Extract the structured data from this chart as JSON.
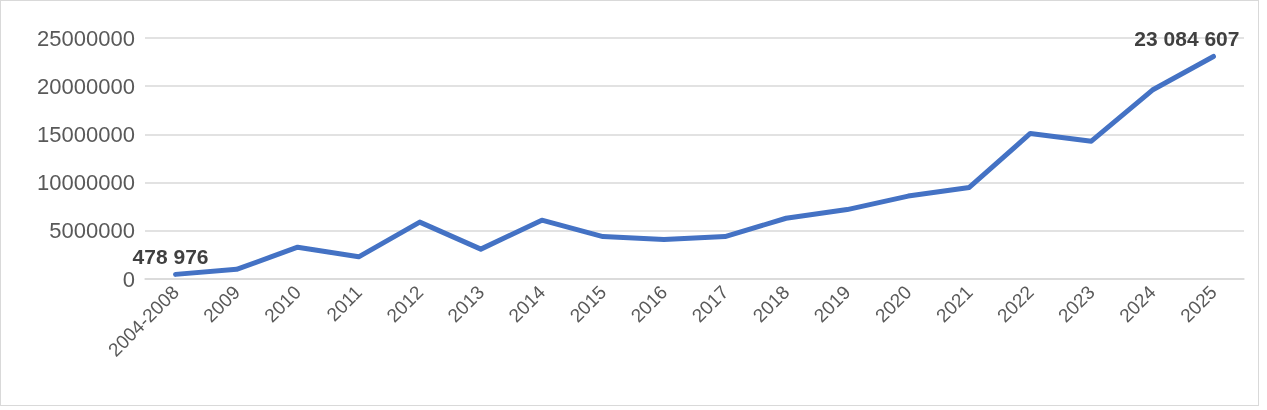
{
  "chart_data": {
    "type": "line",
    "categories": [
      "2004-2008",
      "2009",
      "2010",
      "2011",
      "2012",
      "2013",
      "2014",
      "2015",
      "2016",
      "2017",
      "2018",
      "2019",
      "2020",
      "2021",
      "2022",
      "2023",
      "2024",
      "2025"
    ],
    "values": [
      478976,
      1000000,
      3300000,
      2300000,
      5900000,
      3100000,
      6100000,
      4400000,
      4100000,
      4400000,
      6300000,
      7200000,
      8600000,
      9500000,
      15100000,
      14300000,
      19600000,
      23084607
    ],
    "value_labels": [
      "478 976",
      null,
      null,
      null,
      null,
      null,
      null,
      null,
      null,
      null,
      null,
      null,
      null,
      null,
      null,
      null,
      null,
      "23 084 607"
    ],
    "color": "#4472c4",
    "ylim": [
      0,
      25000000
    ],
    "yticks": [
      0,
      5000000,
      10000000,
      15000000,
      20000000,
      25000000
    ],
    "grid": "y",
    "marker": "none",
    "line_style": "solid"
  }
}
